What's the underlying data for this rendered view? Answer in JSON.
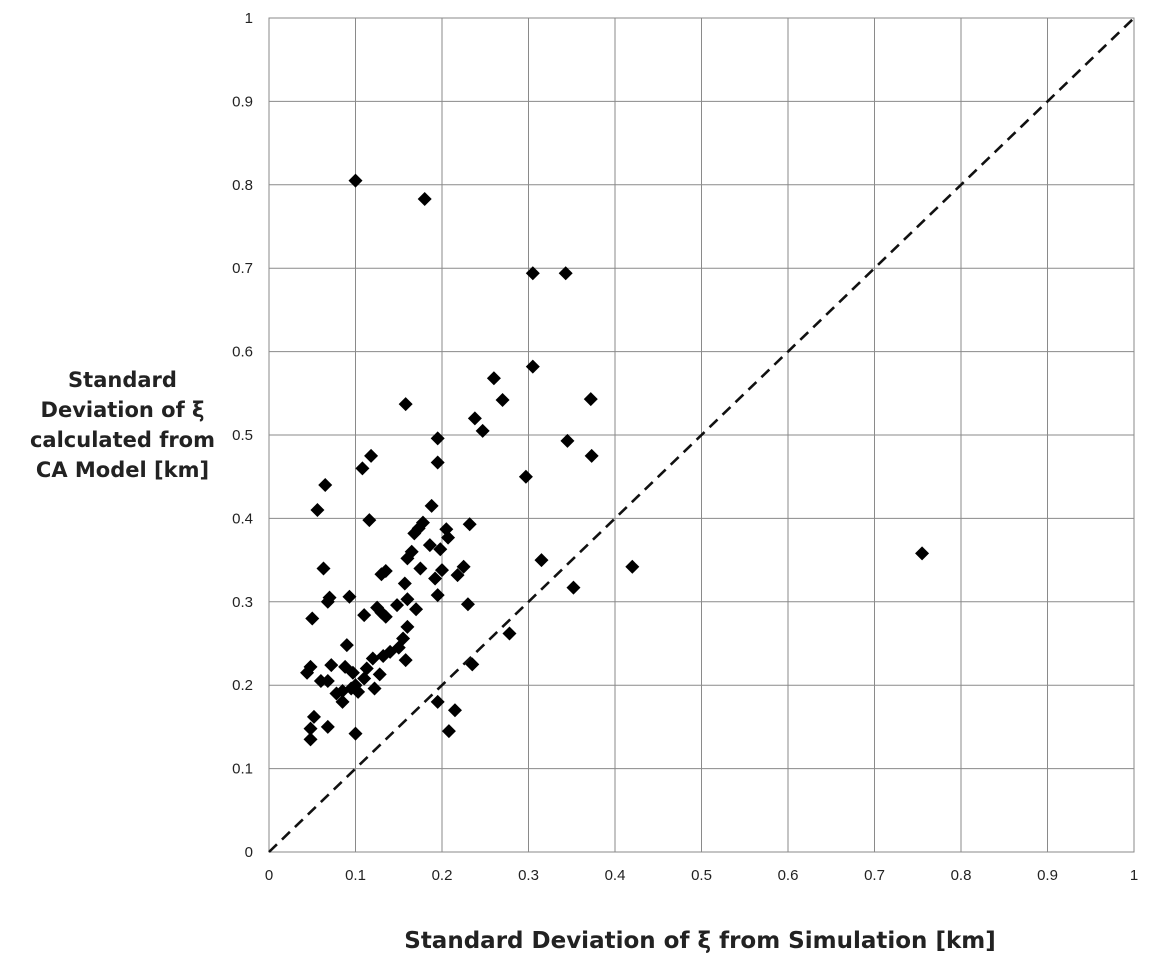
{
  "chart_data": {
    "type": "scatter",
    "title": "",
    "xlabel": "Standard Deviation of ξ from Simulation  [km]",
    "ylabel_lines": [
      "Standard",
      "Deviation of ξ",
      "calculated from",
      "CA Model [km]"
    ],
    "xlim": [
      0,
      1
    ],
    "ylim": [
      0,
      1
    ],
    "x_ticks": [
      "0",
      "0.1",
      "0.2",
      "0.3",
      "0.4",
      "0.5",
      "0.6",
      "0.7",
      "0.8",
      "0.9",
      "1"
    ],
    "y_ticks": [
      "0",
      "0.1",
      "0.2",
      "0.3",
      "0.4",
      "0.5",
      "0.6",
      "0.7",
      "0.8",
      "0.9",
      "1"
    ],
    "grid": true,
    "legend": "none",
    "marker": "diamond",
    "marker_color": "#000000",
    "reference_line": {
      "style": "dashed",
      "from": [
        0,
        0
      ],
      "to": [
        1,
        1
      ]
    },
    "series": [
      {
        "values": [
          [
            0.1,
            0.805
          ],
          [
            0.18,
            0.783
          ],
          [
            0.305,
            0.694
          ],
          [
            0.343,
            0.694
          ],
          [
            0.305,
            0.582
          ],
          [
            0.26,
            0.568
          ],
          [
            0.372,
            0.543
          ],
          [
            0.27,
            0.542
          ],
          [
            0.158,
            0.537
          ],
          [
            0.238,
            0.52
          ],
          [
            0.247,
            0.505
          ],
          [
            0.195,
            0.496
          ],
          [
            0.345,
            0.493
          ],
          [
            0.373,
            0.475
          ],
          [
            0.118,
            0.475
          ],
          [
            0.195,
            0.467
          ],
          [
            0.108,
            0.46
          ],
          [
            0.297,
            0.45
          ],
          [
            0.065,
            0.44
          ],
          [
            0.188,
            0.415
          ],
          [
            0.056,
            0.41
          ],
          [
            0.116,
            0.398
          ],
          [
            0.178,
            0.395
          ],
          [
            0.232,
            0.393
          ],
          [
            0.205,
            0.387
          ],
          [
            0.173,
            0.388
          ],
          [
            0.168,
            0.382
          ],
          [
            0.207,
            0.377
          ],
          [
            0.186,
            0.368
          ],
          [
            0.198,
            0.363
          ],
          [
            0.165,
            0.36
          ],
          [
            0.16,
            0.352
          ],
          [
            0.42,
            0.342
          ],
          [
            0.755,
            0.358
          ],
          [
            0.315,
            0.35
          ],
          [
            0.225,
            0.342
          ],
          [
            0.063,
            0.34
          ],
          [
            0.175,
            0.34
          ],
          [
            0.2,
            0.338
          ],
          [
            0.135,
            0.337
          ],
          [
            0.13,
            0.333
          ],
          [
            0.218,
            0.332
          ],
          [
            0.192,
            0.328
          ],
          [
            0.157,
            0.322
          ],
          [
            0.352,
            0.317
          ],
          [
            0.195,
            0.308
          ],
          [
            0.093,
            0.306
          ],
          [
            0.07,
            0.305
          ],
          [
            0.068,
            0.3
          ],
          [
            0.16,
            0.303
          ],
          [
            0.23,
            0.297
          ],
          [
            0.148,
            0.296
          ],
          [
            0.125,
            0.293
          ],
          [
            0.17,
            0.291
          ],
          [
            0.13,
            0.287
          ],
          [
            0.11,
            0.284
          ],
          [
            0.135,
            0.282
          ],
          [
            0.05,
            0.28
          ],
          [
            0.16,
            0.27
          ],
          [
            0.278,
            0.262
          ],
          [
            0.155,
            0.256
          ],
          [
            0.09,
            0.248
          ],
          [
            0.15,
            0.245
          ],
          [
            0.14,
            0.24
          ],
          [
            0.132,
            0.235
          ],
          [
            0.12,
            0.232
          ],
          [
            0.158,
            0.23
          ],
          [
            0.235,
            0.225
          ],
          [
            0.072,
            0.224
          ],
          [
            0.048,
            0.222
          ],
          [
            0.088,
            0.222
          ],
          [
            0.113,
            0.22
          ],
          [
            0.044,
            0.215
          ],
          [
            0.097,
            0.215
          ],
          [
            0.128,
            0.213
          ],
          [
            0.11,
            0.208
          ],
          [
            0.06,
            0.205
          ],
          [
            0.068,
            0.205
          ],
          [
            0.1,
            0.2
          ],
          [
            0.095,
            0.196
          ],
          [
            0.122,
            0.196
          ],
          [
            0.085,
            0.193
          ],
          [
            0.078,
            0.19
          ],
          [
            0.103,
            0.192
          ],
          [
            0.085,
            0.18
          ],
          [
            0.195,
            0.18
          ],
          [
            0.215,
            0.17
          ],
          [
            0.052,
            0.162
          ],
          [
            0.068,
            0.15
          ],
          [
            0.048,
            0.148
          ],
          [
            0.208,
            0.145
          ],
          [
            0.1,
            0.142
          ],
          [
            0.048,
            0.135
          ]
        ]
      }
    ]
  }
}
